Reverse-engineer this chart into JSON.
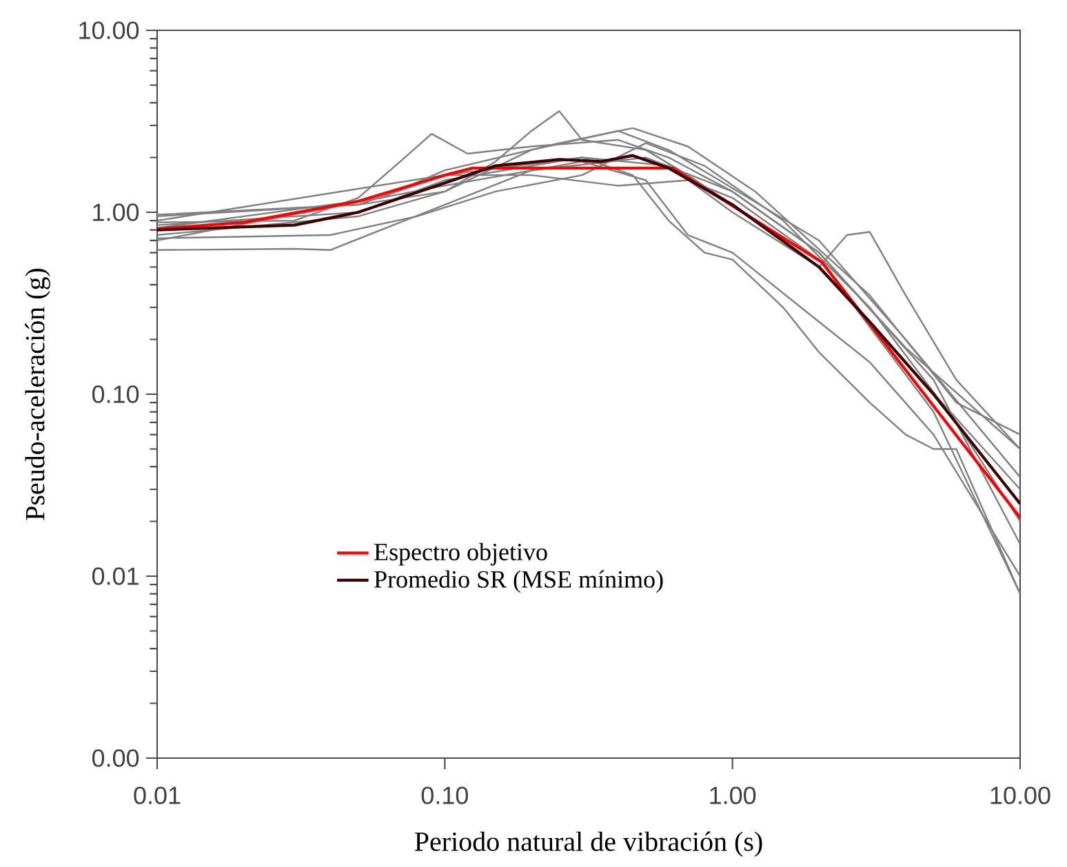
{
  "chart_data": {
    "type": "line",
    "xlabel": "Periodo natural de vibración (s)",
    "ylabel": "Pseudo-aceleración (g)",
    "log": "xy",
    "legend": "bottom left",
    "xlim": [
      0.01,
      10
    ],
    "ylim": [
      0.001,
      10
    ],
    "xticks": [
      0.01,
      {
        "value": 0.1,
        "label": "0.10"
      },
      {
        "value": 1,
        "label": "1.00"
      },
      {
        "value": 10,
        "label": "10.00"
      }
    ],
    "yticks": [
      {
        "value": 0.001,
        "label": "0.00"
      },
      0.01,
      {
        "value": 0.1,
        "label": "0.10"
      },
      {
        "value": 1,
        "label": "1.00"
      },
      {
        "value": 10,
        "label": "10.00"
      }
    ],
    "series": [
      {
        "color": "#808080",
        "x": [
          0.01,
          0.05,
          0.1,
          0.2,
          0.3,
          0.45,
          0.6,
          0.8,
          1,
          1.5,
          2,
          3,
          4,
          5,
          6,
          10
        ],
        "values": [
          0.85,
          1.0,
          1.5,
          1.8,
          2.0,
          1.6,
          0.9,
          0.6,
          0.55,
          0.3,
          0.17,
          0.09,
          0.06,
          0.05,
          0.05,
          0.008
        ]
      },
      {
        "color": "#808080",
        "x": [
          0.01,
          0.1,
          0.3,
          0.5,
          0.7,
          1,
          2,
          3,
          5,
          10
        ],
        "values": [
          0.7,
          1.4,
          1.9,
          1.5,
          0.75,
          0.6,
          0.25,
          0.15,
          0.06,
          0.01
        ]
      },
      {
        "color": "#808080",
        "x": [
          0.01,
          0.1,
          0.3,
          0.6,
          1,
          2,
          2.5,
          3,
          4,
          6,
          10
        ],
        "values": [
          0.9,
          1.6,
          2.0,
          1.8,
          1.0,
          0.5,
          0.75,
          0.78,
          0.35,
          0.12,
          0.05
        ]
      },
      {
        "color": "#808080",
        "x": [
          0.01,
          0.05,
          0.1,
          0.15,
          0.2,
          0.25,
          0.3,
          0.5,
          0.7,
          1,
          2,
          4,
          10
        ],
        "values": [
          0.95,
          1.1,
          1.3,
          1.9,
          2.8,
          3.6,
          2.5,
          2.2,
          1.6,
          1.1,
          0.5,
          0.15,
          0.03
        ]
      },
      {
        "color": "#808080",
        "x": [
          0.01,
          0.03,
          0.05,
          0.07,
          0.09,
          0.12,
          0.2,
          0.4,
          0.6,
          1,
          2,
          4,
          10
        ],
        "values": [
          0.88,
          0.9,
          1.2,
          1.9,
          2.7,
          2.1,
          2.3,
          2.5,
          2.0,
          1.3,
          0.6,
          0.18,
          0.05
        ]
      },
      {
        "color": "#808080",
        "x": [
          0.01,
          0.03,
          0.04,
          0.06,
          0.1,
          0.2,
          0.5,
          1,
          2,
          5,
          10
        ],
        "values": [
          0.62,
          0.63,
          0.62,
          0.8,
          1.1,
          1.7,
          2.0,
          1.3,
          0.6,
          0.12,
          0.015
        ]
      },
      {
        "color": "#808080",
        "x": [
          0.01,
          0.05,
          0.1,
          0.2,
          0.4,
          0.6,
          0.9,
          2,
          4,
          10
        ],
        "values": [
          0.75,
          0.95,
          1.3,
          2.2,
          2.8,
          2.2,
          1.5,
          0.7,
          0.2,
          0.035
        ]
      },
      {
        "color": "#808080",
        "x": [
          0.01,
          0.05,
          0.1,
          0.2,
          0.4,
          0.7,
          1,
          2,
          5,
          10
        ],
        "values": [
          0.97,
          1.1,
          1.6,
          1.6,
          1.4,
          1.5,
          1.2,
          0.55,
          0.08,
          0.008
        ]
      },
      {
        "color": "#808080",
        "x": [
          0.01,
          0.04,
          0.08,
          0.15,
          0.3,
          0.5,
          0.8,
          1.5,
          3,
          6,
          10
        ],
        "values": [
          0.72,
          0.75,
          0.95,
          1.3,
          1.6,
          2.4,
          1.8,
          0.9,
          0.3,
          0.07,
          0.02
        ]
      },
      {
        "color": "#808080",
        "x": [
          0.01,
          0.06,
          0.1,
          0.25,
          0.45,
          0.7,
          1.2,
          3,
          6,
          10
        ],
        "values": [
          0.82,
          1.2,
          1.7,
          2.4,
          2.9,
          2.3,
          1.3,
          0.35,
          0.09,
          0.06
        ]
      },
      {
        "name": "Espectro objetivo",
        "color": "#ff0000",
        "x": [
          0.01,
          0.02,
          0.05,
          0.1,
          0.125,
          0.62,
          2.05,
          10
        ],
        "values": [
          0.81,
          0.88,
          1.15,
          1.6,
          1.75,
          1.75,
          0.53,
          0.021
        ]
      },
      {
        "name": "Promedio SR (MSE mínimo)",
        "color": "#3d0000",
        "x": [
          0.01,
          0.03,
          0.05,
          0.1,
          0.15,
          0.25,
          0.35,
          0.45,
          0.6,
          1,
          2,
          3,
          5,
          10
        ],
        "values": [
          0.8,
          0.85,
          1.0,
          1.45,
          1.8,
          1.95,
          1.9,
          2.05,
          1.75,
          1.1,
          0.5,
          0.25,
          0.1,
          0.025
        ]
      }
    ]
  }
}
